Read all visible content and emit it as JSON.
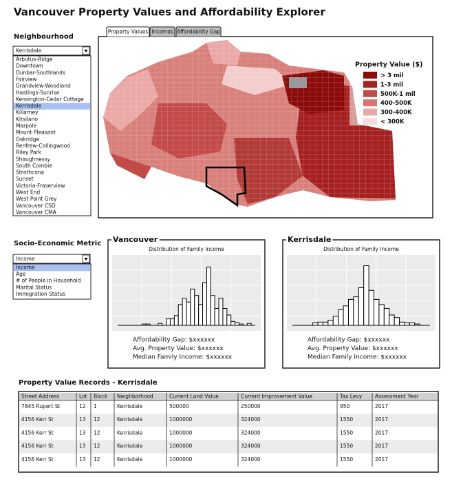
{
  "title": "Vancouver Property Values and Affordability Explorer",
  "neighbourhood": {
    "label": "Neighbourhood",
    "selected": "Kerrisdale",
    "options": [
      "Arbutus-Ridge",
      "Downtown",
      "Dunbar-Southlands",
      "Fairview",
      "Grandview-Woodland",
      "Hastings-Sunrise",
      "Kensington-Cedar Cottage",
      "Kerrisdale",
      "Killarney",
      "Kitsilano",
      "Marpole",
      "Mount Pleasant",
      "Oakridge",
      "Renfrew-Collingwood",
      "Riley Park",
      "Shaughnessy",
      "South Combie",
      "Strathcona",
      "Sunset",
      "Victoria-Fraserview",
      "West End",
      "West Point Grey",
      "Vancouver CSD",
      "Vancouver CMA"
    ]
  },
  "tabs": [
    "Property Values",
    "Incomes",
    "Affordability Gap"
  ],
  "map_legend": {
    "title": "Property Value ($)",
    "items": [
      {
        "label": "> 3 mil",
        "color": "#8b0a0a"
      },
      {
        "label": "1-3 mil",
        "color": "#a52020"
      },
      {
        "label": "500K-1 mil",
        "color": "#c24a48"
      },
      {
        "label": "400-500K",
        "color": "#d97672"
      },
      {
        "label": "300-400K",
        "color": "#eaa9a6"
      },
      {
        "label": "< 300K",
        "color": "#f8dcdc"
      }
    ]
  },
  "metric": {
    "label": "Socio-Economic Metric",
    "selected": "Income",
    "options": [
      "Income",
      "Age",
      "# of People in Household",
      "Marital Status",
      "Immigration Status"
    ]
  },
  "panels": [
    {
      "title": "Vancouver",
      "chart_title": "Distribution of Family Income",
      "counts": [
        0,
        0,
        0,
        0,
        0,
        0,
        2,
        2,
        0,
        0,
        3,
        0,
        10,
        10,
        15,
        32,
        42,
        36,
        56,
        46,
        32,
        66,
        90,
        46,
        26,
        42,
        26,
        16,
        6,
        4,
        2,
        0,
        3,
        0
      ],
      "ylim": [
        0,
        100
      ],
      "lines": [
        "Affordability Gap:  $xxxxxx",
        "Avg. Property Value:  $xxxxxx",
        "Median Family Income:  $xxxxxx"
      ]
    },
    {
      "title": "Kerrisdale",
      "chart_title": "Distribution of Family Income",
      "counts": [
        0,
        0,
        0,
        0,
        4,
        5,
        5,
        8,
        14,
        24,
        30,
        40,
        44,
        58,
        92,
        54,
        40,
        32,
        26,
        16,
        12,
        5,
        4,
        4,
        2,
        0,
        0
      ],
      "ylim": [
        0,
        100
      ],
      "lines": [
        "Affordability Gap:  $xxxxxx",
        "Avg. Property Value:  $xxxxxx",
        "Median Family Income:  $xxxxxx"
      ]
    }
  ],
  "table": {
    "title": "Property Value Records - Kerrisdale",
    "columns": [
      "Street Address",
      "Lot",
      "Block",
      "Neighborhood",
      "Current Land Value",
      "Current Improvement Value",
      "Tax Levy",
      "Assessment Year"
    ],
    "rows": [
      [
        "7845 Rupert St",
        "12",
        "1",
        "Kerrisdale",
        "500000",
        "250000",
        "950",
        "2017"
      ],
      [
        "4156 Kerr St",
        "13",
        "12",
        "Kerrisdale",
        "1000000",
        "324000",
        "1550",
        "2017"
      ],
      [
        "4156 Kerr St",
        "13",
        "12",
        "Kerrisdale",
        "1000000",
        "324000",
        "1550",
        "2017"
      ],
      [
        "4156 Kerr St",
        "13",
        "12",
        "Kerrisdale",
        "1000000",
        "324000",
        "1550",
        "2017"
      ],
      [
        "4156 Kerr St",
        "13",
        "12",
        "Kerrisdale",
        "1000000",
        "324000",
        "1550",
        "2017"
      ]
    ]
  }
}
